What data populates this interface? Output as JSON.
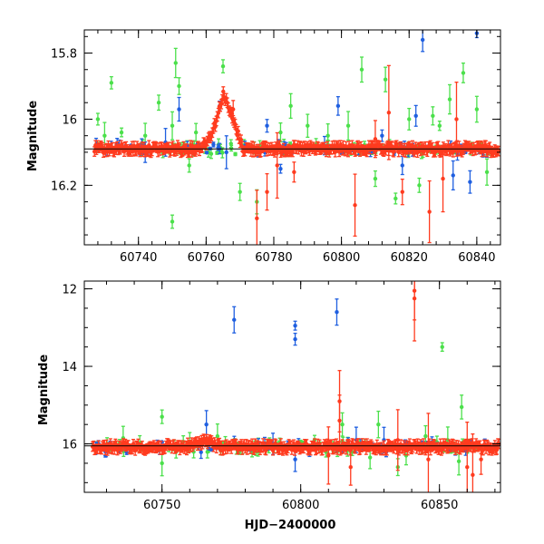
{
  "chart_data": [
    {
      "type": "scatter",
      "title": "",
      "xlabel": "",
      "ylabel": "Magnitude",
      "xlim": [
        60724,
        60847
      ],
      "ylim": [
        16.38,
        15.73
      ],
      "y_inverted": true,
      "reference_line_y": 16.09,
      "x_ticks": [
        60740,
        60760,
        60780,
        60800,
        60820,
        60840
      ],
      "x_tick_labels": [
        "60740",
        "60760",
        "60780",
        "60800",
        "60820",
        "60840"
      ],
      "y_ticks": [
        15.8,
        16.0,
        16.2
      ],
      "y_tick_labels": [
        "15.8",
        "16",
        "16.2"
      ],
      "series": [
        {
          "color": "#ff3b1f",
          "baseline": 16.09,
          "peak": {
            "x": 60765,
            "y": 15.92
          },
          "outliers": [
            {
              "x": 60768,
              "y": 15.97
            },
            {
              "x": 60775,
              "y": 16.3
            },
            {
              "x": 60778,
              "y": 16.22
            },
            {
              "x": 60781,
              "y": 16.14
            },
            {
              "x": 60786,
              "y": 16.16
            },
            {
              "x": 60804,
              "y": 16.26
            },
            {
              "x": 60810,
              "y": 16.06
            },
            {
              "x": 60814,
              "y": 15.98
            },
            {
              "x": 60818,
              "y": 16.22
            },
            {
              "x": 60826,
              "y": 16.28
            },
            {
              "x": 60830,
              "y": 16.18
            },
            {
              "x": 60834,
              "y": 16.0
            }
          ]
        },
        {
          "color": "#1f5fe0",
          "outliers": [
            {
              "x": 60742,
              "y": 16.1
            },
            {
              "x": 60748,
              "y": 16.07
            },
            {
              "x": 60752,
              "y": 15.97
            },
            {
              "x": 60764,
              "y": 15.96
            },
            {
              "x": 60766,
              "y": 16.1
            },
            {
              "x": 60778,
              "y": 16.02
            },
            {
              "x": 60782,
              "y": 16.15
            },
            {
              "x": 60795,
              "y": 16.08
            },
            {
              "x": 60799,
              "y": 15.96
            },
            {
              "x": 60812,
              "y": 16.05
            },
            {
              "x": 60818,
              "y": 16.14
            },
            {
              "x": 60822,
              "y": 15.99
            },
            {
              "x": 60824,
              "y": 15.76
            },
            {
              "x": 60833,
              "y": 16.17
            },
            {
              "x": 60838,
              "y": 16.19
            },
            {
              "x": 60840,
              "y": 15.74
            }
          ]
        },
        {
          "color": "#4be04b",
          "outliers": [
            {
              "x": 60728,
              "y": 16.0
            },
            {
              "x": 60730,
              "y": 16.05
            },
            {
              "x": 60732,
              "y": 15.89
            },
            {
              "x": 60735,
              "y": 16.04
            },
            {
              "x": 60742,
              "y": 16.05
            },
            {
              "x": 60746,
              "y": 15.95
            },
            {
              "x": 60750,
              "y": 16.02
            },
            {
              "x": 60750,
              "y": 16.31
            },
            {
              "x": 60751,
              "y": 15.83
            },
            {
              "x": 60752,
              "y": 15.9
            },
            {
              "x": 60755,
              "y": 16.14
            },
            {
              "x": 60757,
              "y": 16.04
            },
            {
              "x": 60765,
              "y": 15.84
            },
            {
              "x": 60770,
              "y": 16.22
            },
            {
              "x": 60775,
              "y": 16.25
            },
            {
              "x": 60782,
              "y": 16.04
            },
            {
              "x": 60785,
              "y": 15.96
            },
            {
              "x": 60790,
              "y": 16.02
            },
            {
              "x": 60796,
              "y": 16.05
            },
            {
              "x": 60802,
              "y": 16.02
            },
            {
              "x": 60806,
              "y": 15.85
            },
            {
              "x": 60810,
              "y": 16.18
            },
            {
              "x": 60813,
              "y": 15.88
            },
            {
              "x": 60816,
              "y": 16.24
            },
            {
              "x": 60820,
              "y": 16.0
            },
            {
              "x": 60823,
              "y": 16.2
            },
            {
              "x": 60827,
              "y": 15.99
            },
            {
              "x": 60829,
              "y": 16.02
            },
            {
              "x": 60832,
              "y": 15.94
            },
            {
              "x": 60836,
              "y": 15.86
            },
            {
              "x": 60840,
              "y": 15.97
            },
            {
              "x": 60843,
              "y": 16.16
            }
          ]
        }
      ]
    },
    {
      "type": "scatter",
      "title": "",
      "xlabel": "HJD−2400000",
      "ylabel": "Magnitude",
      "xlim": [
        60722,
        60872
      ],
      "ylim": [
        17.25,
        11.8
      ],
      "y_inverted": true,
      "reference_line_y": 16.05,
      "x_ticks": [
        60750,
        60800,
        60850
      ],
      "x_tick_labels": [
        "60750",
        "60800",
        "60850"
      ],
      "y_ticks": [
        12,
        14,
        16
      ],
      "y_tick_labels": [
        "12",
        "14",
        "16"
      ],
      "series": [
        {
          "color": "#ff3b1f",
          "baseline": 16.08,
          "peak": {
            "x": 60765,
            "y": 15.9
          },
          "outliers": [
            {
              "x": 60841,
              "y": 12.05
            },
            {
              "x": 60841,
              "y": 12.25
            },
            {
              "x": 60814,
              "y": 14.9
            },
            {
              "x": 60814,
              "y": 15.4
            },
            {
              "x": 60810,
              "y": 16.3
            },
            {
              "x": 60818,
              "y": 16.6
            },
            {
              "x": 60835,
              "y": 15.9
            },
            {
              "x": 60846,
              "y": 16.4
            },
            {
              "x": 60860,
              "y": 16.6
            },
            {
              "x": 60862,
              "y": 16.8
            },
            {
              "x": 60865,
              "y": 16.4
            }
          ]
        },
        {
          "color": "#1f5fe0",
          "outliers": [
            {
              "x": 60776,
              "y": 12.8
            },
            {
              "x": 60798,
              "y": 12.95
            },
            {
              "x": 60798,
              "y": 13.3
            },
            {
              "x": 60813,
              "y": 12.6
            },
            {
              "x": 60766,
              "y": 15.5
            },
            {
              "x": 60798,
              "y": 16.4
            },
            {
              "x": 60820,
              "y": 15.9
            },
            {
              "x": 60830,
              "y": 15.9
            },
            {
              "x": 60790,
              "y": 16.0
            }
          ]
        },
        {
          "color": "#4be04b",
          "outliers": [
            {
              "x": 60851,
              "y": 13.5
            },
            {
              "x": 60858,
              "y": 15.05
            },
            {
              "x": 60750,
              "y": 15.3
            },
            {
              "x": 60750,
              "y": 16.5
            },
            {
              "x": 60805,
              "y": 15.9
            },
            {
              "x": 60815,
              "y": 15.5
            },
            {
              "x": 60825,
              "y": 16.35
            },
            {
              "x": 60828,
              "y": 15.5
            },
            {
              "x": 60835,
              "y": 16.6
            },
            {
              "x": 60838,
              "y": 16.3
            },
            {
              "x": 60845,
              "y": 15.8
            },
            {
              "x": 60853,
              "y": 15.9
            },
            {
              "x": 60857,
              "y": 16.45
            },
            {
              "x": 60736,
              "y": 15.85
            },
            {
              "x": 60770,
              "y": 15.8
            },
            {
              "x": 60742,
              "y": 16.0
            },
            {
              "x": 60760,
              "y": 15.95
            }
          ]
        }
      ]
    }
  ]
}
